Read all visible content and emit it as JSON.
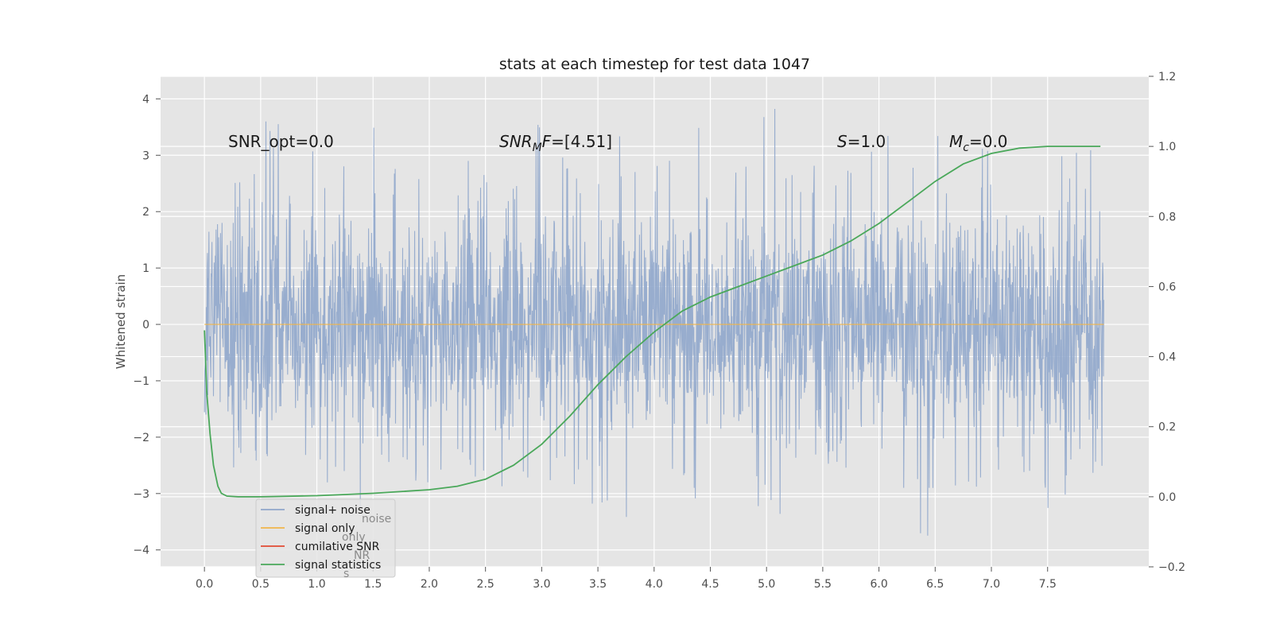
{
  "chart_data": {
    "type": "line",
    "title": "stats at each timestep for test data 1047",
    "ylabel": "Whitened strain",
    "xlabel": "",
    "x_ticks": [
      "0.0",
      "0.5",
      "1.0",
      "1.5",
      "2.0",
      "2.5",
      "3.0",
      "3.5",
      "4.0",
      "4.5",
      "5.0",
      "5.5",
      "6.0",
      "6.5",
      "7.0",
      "7.5"
    ],
    "y_left_ticks": [
      "4",
      "3",
      "2",
      "1",
      "0",
      "−1",
      "−2",
      "−3",
      "−4"
    ],
    "y_right_ticks": [
      "1.2",
      "1.0",
      "0.8",
      "0.6",
      "0.4",
      "0.2",
      "0.0",
      "−0.2"
    ],
    "xlim": [
      -0.39,
      8.4
    ],
    "ylim_left": [
      -4.3,
      4.4
    ],
    "ylim_right": [
      -0.2,
      1.2
    ],
    "grid": true,
    "legend_position": "lower-left",
    "annotations": {
      "snr_opt": "SNR_opt=0.0",
      "snr_mf_main": "SNR",
      "snr_mf_sub": "M",
      "snr_mf_rest": "F=[4.51]",
      "s_var": "S",
      "s_val": "=1.0",
      "mc_var": "M",
      "mc_sub": "c",
      "mc_val": "=0.0"
    },
    "legend": [
      {
        "label": "signal+ noise",
        "color": "#8fa6cb"
      },
      {
        "label": "signal only",
        "color": "#f0b54a"
      },
      {
        "label": "cumilative SNR",
        "color": "#e24a33"
      },
      {
        "label": "signal statistics",
        "color": "#4aa85a"
      }
    ],
    "ghost_legend": [
      "noise",
      "only",
      "NR",
      "s"
    ],
    "series": [
      {
        "name": "signal+ noise",
        "color": "#8fa6cb",
        "x_range": [
          0.0,
          8.0
        ],
        "envelope_max": [
          1.8,
          2.9,
          3.7,
          3.2,
          3.0,
          3.5,
          2.8,
          3.0,
          2.7,
          2.9,
          2.6,
          3.6,
          3.1,
          3.4,
          3.5,
          3.0,
          3.3,
          3.5,
          3.0,
          3.9,
          3.0,
          3.0,
          3.4,
          3.6,
          3.0,
          3.4,
          3.5,
          3.1,
          3.2,
          3.4,
          3.1,
          3.0
        ],
        "envelope_min": [
          -1.6,
          -2.6,
          -3.0,
          -2.9,
          -3.2,
          -3.3,
          -2.8,
          -2.9,
          -3.1,
          -3.3,
          -3.1,
          -3.4,
          -3.0,
          -3.2,
          -3.7,
          -3.0,
          -3.1,
          -3.6,
          -3.2,
          -3.4,
          -3.0,
          -2.9,
          -3.0,
          -3.3,
          -3.8,
          -3.0,
          -3.1,
          -3.2,
          -3.0,
          -3.3,
          -3.0,
          -2.3
        ]
      },
      {
        "name": "signal only",
        "color": "#f0b54a",
        "x": [
          0.0,
          8.0
        ],
        "y": [
          0.0,
          0.0
        ]
      },
      {
        "name": "signal statistics",
        "color": "#4aa85a",
        "axis": "right",
        "x": [
          0.0,
          0.02,
          0.05,
          0.08,
          0.12,
          0.15,
          0.2,
          0.3,
          0.5,
          1.0,
          1.5,
          2.0,
          2.25,
          2.5,
          2.75,
          3.0,
          3.25,
          3.5,
          3.75,
          4.0,
          4.25,
          4.5,
          4.75,
          5.0,
          5.25,
          5.5,
          5.75,
          6.0,
          6.25,
          6.5,
          6.75,
          7.0,
          7.25,
          7.5,
          7.75,
          7.97
        ],
        "y": [
          0.475,
          0.3,
          0.18,
          0.09,
          0.03,
          0.01,
          0.002,
          0.0,
          0.0,
          0.003,
          0.01,
          0.02,
          0.03,
          0.05,
          0.09,
          0.15,
          0.23,
          0.32,
          0.4,
          0.47,
          0.53,
          0.57,
          0.6,
          0.63,
          0.66,
          0.69,
          0.73,
          0.78,
          0.84,
          0.9,
          0.95,
          0.98,
          0.995,
          1.0,
          1.0,
          1.0
        ]
      }
    ]
  }
}
